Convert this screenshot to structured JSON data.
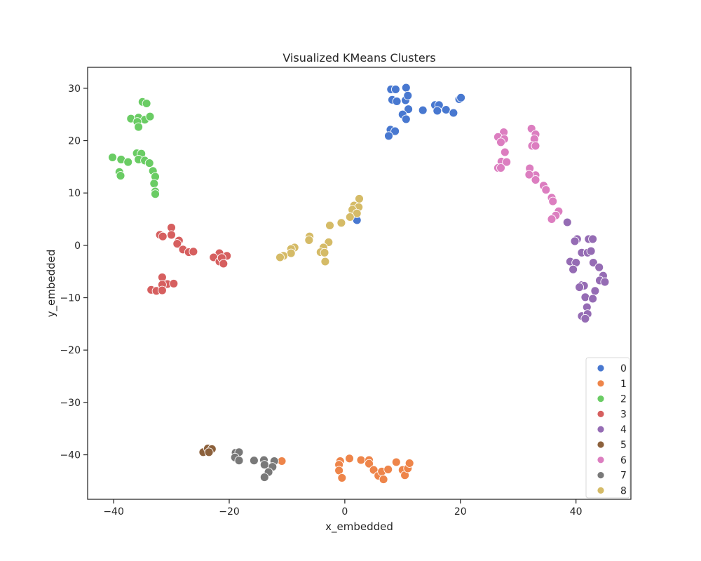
{
  "chart_data": {
    "type": "scatter",
    "title": "Visualized KMeans Clusters",
    "xlabel": "x_embedded",
    "ylabel": "y_embedded",
    "xlim": [
      -44.5,
      49.5
    ],
    "ylim": [
      -48.5,
      34
    ],
    "xticks": [
      -40,
      -20,
      0,
      20,
      40
    ],
    "yticks": [
      -40,
      -30,
      -20,
      -10,
      0,
      10,
      20,
      30
    ],
    "grid": false,
    "legend_position": "lower-right",
    "series": [
      {
        "name": "0",
        "color": "#4878d0",
        "points": [
          [
            8,
            29.8
          ],
          [
            8.8,
            29.8
          ],
          [
            10.6,
            30.1
          ],
          [
            8.2,
            27.8
          ],
          [
            9,
            27.5
          ],
          [
            10.5,
            27.7
          ],
          [
            10.9,
            28.6
          ],
          [
            11,
            26
          ],
          [
            10,
            25
          ],
          [
            10.6,
            24.1
          ],
          [
            13.5,
            25.8
          ],
          [
            15.6,
            26.8
          ],
          [
            16.3,
            26.8
          ],
          [
            16,
            25.7
          ],
          [
            17.5,
            25.9
          ],
          [
            18.8,
            25.3
          ],
          [
            19.8,
            27.9
          ],
          [
            20.1,
            28.2
          ],
          [
            7.9,
            22.1
          ],
          [
            8.7,
            21.8
          ],
          [
            7.6,
            20.9
          ],
          [
            2.1,
            4.8
          ]
        ]
      },
      {
        "name": "1",
        "color": "#ee854a",
        "points": [
          [
            -0.8,
            -41.2
          ],
          [
            0.8,
            -40.7
          ],
          [
            -1,
            -41.9
          ],
          [
            -1,
            -43
          ],
          [
            -0.5,
            -44.4
          ],
          [
            2.8,
            -41
          ],
          [
            4.2,
            -41
          ],
          [
            4.2,
            -41.7
          ],
          [
            5,
            -42.9
          ],
          [
            5.8,
            -44
          ],
          [
            6.4,
            -43.2
          ],
          [
            6.7,
            -44.7
          ],
          [
            7.5,
            -42.8
          ],
          [
            8.9,
            -41.4
          ],
          [
            10,
            -42.9
          ],
          [
            10.4,
            -43.9
          ],
          [
            10.9,
            -42.6
          ],
          [
            11.2,
            -41.6
          ],
          [
            -10.9,
            -41.2
          ]
        ]
      },
      {
        "name": "2",
        "color": "#6acc64",
        "points": [
          [
            -35,
            27.4
          ],
          [
            -34.3,
            27.1
          ],
          [
            -37,
            24.2
          ],
          [
            -35.7,
            24.4
          ],
          [
            -34.6,
            24
          ],
          [
            -33.7,
            24.6
          ],
          [
            -35.9,
            23.6
          ],
          [
            -35.7,
            22.6
          ],
          [
            -40.2,
            16.8
          ],
          [
            -38.7,
            16.4
          ],
          [
            -37.5,
            15.9
          ],
          [
            -36,
            17.6
          ],
          [
            -35.2,
            17.5
          ],
          [
            -35.7,
            16.4
          ],
          [
            -34.6,
            16.2
          ],
          [
            -33.8,
            15.7
          ],
          [
            -39,
            14
          ],
          [
            -38.8,
            13.3
          ],
          [
            -33.2,
            14.2
          ],
          [
            -32.8,
            13.1
          ],
          [
            -33,
            11.8
          ],
          [
            -32.8,
            10.3
          ],
          [
            -32.8,
            9.8
          ]
        ]
      },
      {
        "name": "3",
        "color": "#d65f5f",
        "points": [
          [
            -32,
            2
          ],
          [
            -31.5,
            1.7
          ],
          [
            -30,
            3.4
          ],
          [
            -30,
            2
          ],
          [
            -28.7,
            0.9
          ],
          [
            -29,
            0.3
          ],
          [
            -28,
            -0.8
          ],
          [
            -27,
            -1.3
          ],
          [
            -26.2,
            -1.2
          ],
          [
            -21.7,
            -1.5
          ],
          [
            -22.7,
            -2.3
          ],
          [
            -21.7,
            -3.1
          ],
          [
            -20.4,
            -2
          ],
          [
            -21.3,
            -2.4
          ],
          [
            -21,
            -3.5
          ],
          [
            -31.6,
            -6.1
          ],
          [
            -30.7,
            -7.4
          ],
          [
            -29.6,
            -7.3
          ],
          [
            -31.6,
            -7.5
          ],
          [
            -33.5,
            -8.5
          ],
          [
            -32.6,
            -8.7
          ],
          [
            -31.6,
            -8.6
          ]
        ]
      },
      {
        "name": "4",
        "color": "#956cb4",
        "points": [
          [
            38.5,
            4.4
          ],
          [
            40.2,
            1.2
          ],
          [
            39.8,
            0.8
          ],
          [
            42.2,
            1.2
          ],
          [
            42.9,
            1.2
          ],
          [
            41,
            -1.4
          ],
          [
            42,
            -1.4
          ],
          [
            42.6,
            -1.1
          ],
          [
            39,
            -3.1
          ],
          [
            40,
            -3.3
          ],
          [
            39.5,
            -4.6
          ],
          [
            43,
            -3.3
          ],
          [
            44,
            -4.2
          ],
          [
            44.7,
            -5.8
          ],
          [
            44.1,
            -6.7
          ],
          [
            45,
            -7
          ],
          [
            41,
            -7.6
          ],
          [
            41.4,
            -7.7
          ],
          [
            40.6,
            -8
          ],
          [
            43.3,
            -8.7
          ],
          [
            41.6,
            -9.9
          ],
          [
            42.9,
            -10.2
          ],
          [
            41.9,
            -11.8
          ],
          [
            41,
            -13.5
          ],
          [
            42,
            -13.1
          ],
          [
            41.6,
            -14
          ]
        ]
      },
      {
        "name": "5",
        "color": "#8c613c",
        "points": [
          [
            -24.5,
            -39.5
          ],
          [
            -23.7,
            -38.8
          ],
          [
            -23,
            -38.9
          ],
          [
            -23.5,
            -39.5
          ]
        ]
      },
      {
        "name": "6",
        "color": "#dc7ec0",
        "points": [
          [
            32.3,
            22.3
          ],
          [
            33,
            21.2
          ],
          [
            27.5,
            21.6
          ],
          [
            26.5,
            20.7
          ],
          [
            27.6,
            20.3
          ],
          [
            32.8,
            20.3
          ],
          [
            27,
            19.7
          ],
          [
            32.4,
            19
          ],
          [
            33,
            19
          ],
          [
            27.7,
            17.8
          ],
          [
            27.1,
            16
          ],
          [
            28,
            15.9
          ],
          [
            26.5,
            14.8
          ],
          [
            27,
            14.8
          ],
          [
            32,
            14.7
          ],
          [
            33,
            13.4
          ],
          [
            31.9,
            13.5
          ],
          [
            33,
            12.5
          ],
          [
            34.4,
            11.4
          ],
          [
            34.8,
            10.6
          ],
          [
            35.8,
            9.1
          ],
          [
            36,
            8.4
          ],
          [
            37,
            6.5
          ],
          [
            36.5,
            5.7
          ],
          [
            35.8,
            5
          ]
        ]
      },
      {
        "name": "7",
        "color": "#797979",
        "points": [
          [
            -15.7,
            -41.1
          ],
          [
            -14,
            -41
          ],
          [
            -12.2,
            -41.2
          ],
          [
            -18.9,
            -39.6
          ],
          [
            -18.3,
            -39.5
          ],
          [
            -19,
            -40.5
          ],
          [
            -18.3,
            -41.1
          ],
          [
            -13.9,
            -41.9
          ],
          [
            -12.5,
            -42.3
          ],
          [
            -13.2,
            -43.3
          ],
          [
            -13.9,
            -44.3
          ]
        ]
      },
      {
        "name": "8",
        "color": "#d5bb67",
        "points": [
          [
            2.5,
            8.9
          ],
          [
            1.6,
            7.6
          ],
          [
            2.4,
            7.3
          ],
          [
            1.3,
            6.8
          ],
          [
            2.1,
            6.1
          ],
          [
            0.9,
            5.4
          ],
          [
            -0.6,
            4.3
          ],
          [
            -2.6,
            3.8
          ],
          [
            -6.1,
            1.7
          ],
          [
            -6.2,
            1
          ],
          [
            -2.8,
            0.6
          ],
          [
            -8.7,
            -0.4
          ],
          [
            -9.3,
            -0.7
          ],
          [
            -9.3,
            -1.5
          ],
          [
            -3.7,
            -0.4
          ],
          [
            -4.2,
            -1.3
          ],
          [
            -3.5,
            -1.4
          ],
          [
            -10.6,
            -2
          ],
          [
            -11.2,
            -2.3
          ],
          [
            -3.4,
            -3.1
          ]
        ]
      }
    ]
  }
}
